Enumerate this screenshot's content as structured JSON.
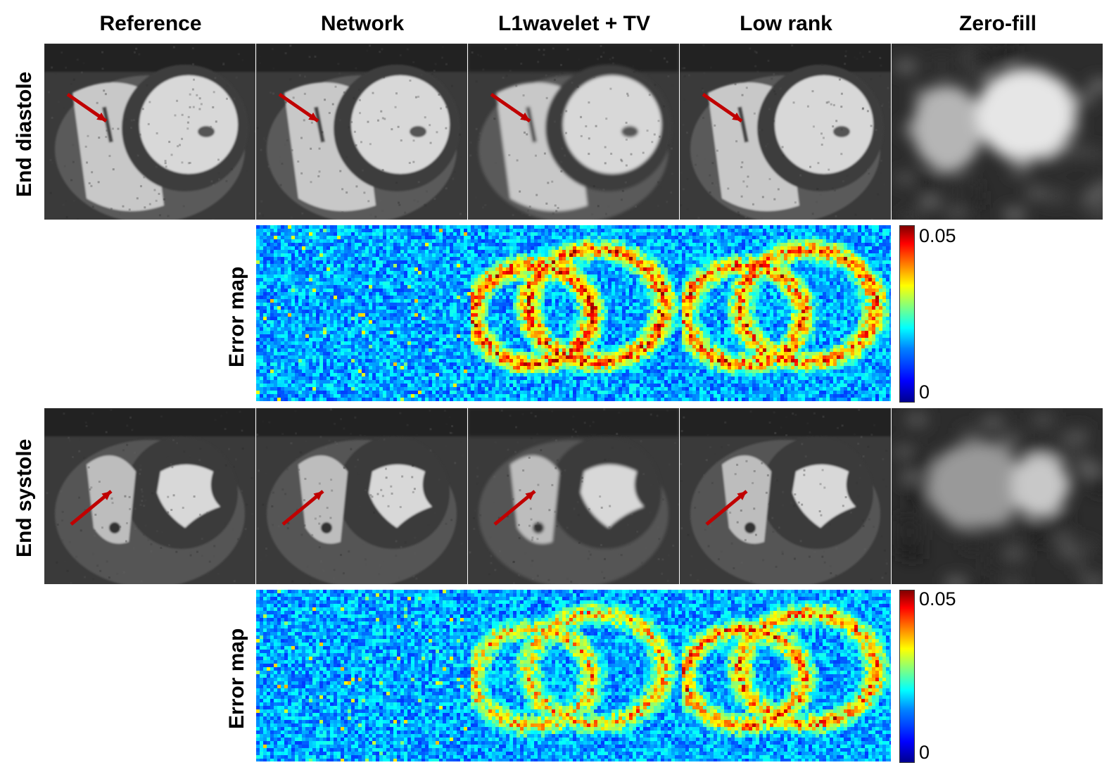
{
  "columns": [
    "Reference",
    "Network",
    "L1wavelet + TV",
    "Low rank",
    "Zero-fill"
  ],
  "rows": [
    {
      "label": "End diastole",
      "error_label": "Error map",
      "cbar_max": "0.05",
      "cbar_min": "0"
    },
    {
      "label": "End systole",
      "error_label": "Error map",
      "cbar_max": "0.05",
      "cbar_min": "0"
    }
  ],
  "colormap": "jet",
  "arrow_color": "#c00000"
}
